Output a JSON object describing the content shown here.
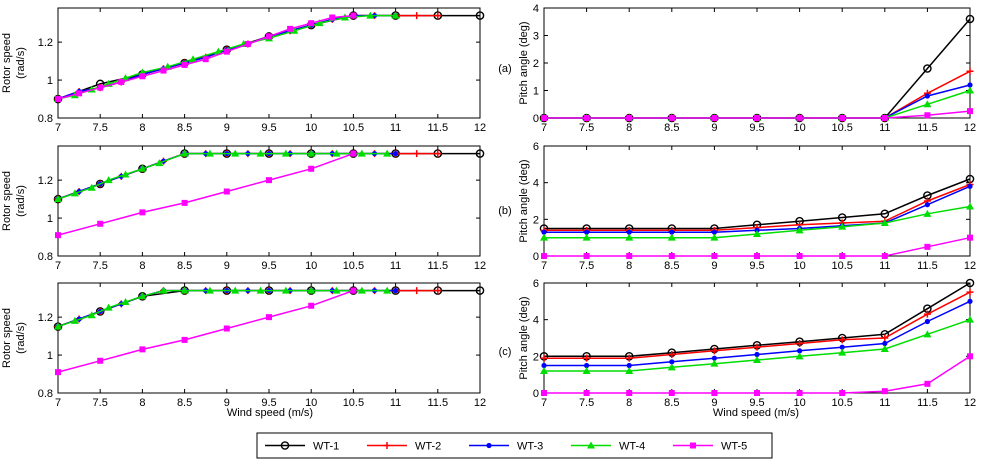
{
  "x_ticks": [
    7,
    7.5,
    8,
    8.5,
    9,
    9.5,
    10,
    10.5,
    11,
    11.5,
    12
  ],
  "xlabel": "Wind speed (m/s)",
  "panel_labels": [
    "(a)",
    "(b)",
    "(c)"
  ],
  "legend": {
    "entries": [
      {
        "name": "WT-1",
        "color": "#000000",
        "marker": "circle"
      },
      {
        "name": "WT-2",
        "color": "#ff0000",
        "marker": "plus"
      },
      {
        "name": "WT-3",
        "color": "#0000ff",
        "marker": "dot"
      },
      {
        "name": "WT-4",
        "color": "#00dd00",
        "marker": "triangle"
      },
      {
        "name": "WT-5",
        "color": "#ff00ff",
        "marker": "square"
      }
    ]
  },
  "chart_data": [
    {
      "type": "line",
      "title": "",
      "panel": "(a)",
      "ylabel_lines": [
        "Rotor speed",
        "(rad/s)"
      ],
      "xlabel": "",
      "xlim": [
        7,
        12
      ],
      "ylim": [
        0.8,
        1.38
      ],
      "yticks": [
        0.8,
        1,
        1.2
      ],
      "ytick_labels": [
        "0.8",
        "1",
        "1.2"
      ],
      "xtick_labels_shown": true,
      "series": [
        {
          "name": "WT-1",
          "x": [
            7,
            7.5,
            8,
            8.5,
            9,
            9.5,
            10,
            10.5,
            11,
            11.5,
            12
          ],
          "y": [
            0.9,
            0.98,
            1.03,
            1.09,
            1.16,
            1.23,
            1.29,
            1.34,
            1.34,
            1.34,
            1.34
          ]
        },
        {
          "name": "WT-2",
          "x": [
            7,
            7.25,
            7.5,
            7.75,
            8,
            8.25,
            8.5,
            8.75,
            9,
            9.25,
            9.5,
            9.75,
            10,
            10.25,
            10.5,
            10.75,
            11,
            11.25,
            11.5
          ],
          "y": [
            0.9,
            0.94,
            0.96,
            0.99,
            1.03,
            1.06,
            1.09,
            1.12,
            1.16,
            1.19,
            1.23,
            1.26,
            1.29,
            1.32,
            1.34,
            1.34,
            1.34,
            1.34,
            1.34
          ]
        },
        {
          "name": "WT-3",
          "x": [
            7,
            7.25,
            7.5,
            7.75,
            8,
            8.25,
            8.5,
            8.75,
            9,
            9.25,
            9.5,
            9.75,
            10,
            10.25,
            10.5,
            10.75,
            11
          ],
          "y": [
            0.9,
            0.94,
            0.96,
            0.99,
            1.03,
            1.06,
            1.09,
            1.12,
            1.16,
            1.19,
            1.23,
            1.26,
            1.29,
            1.32,
            1.34,
            1.34,
            1.34
          ]
        },
        {
          "name": "WT-4",
          "x": [
            7,
            7.2,
            7.4,
            7.6,
            7.8,
            8,
            8.3,
            8.6,
            8.9,
            9.2,
            9.5,
            9.8,
            10.1,
            10.4,
            10.7,
            11
          ],
          "y": [
            0.9,
            0.92,
            0.95,
            0.98,
            1.01,
            1.04,
            1.07,
            1.11,
            1.15,
            1.19,
            1.22,
            1.26,
            1.3,
            1.33,
            1.34,
            1.34
          ]
        },
        {
          "name": "WT-5",
          "x": [
            7,
            7.25,
            7.5,
            7.75,
            8,
            8.25,
            8.5,
            8.75,
            9,
            9.25,
            9.5,
            9.75,
            10,
            10.25,
            10.5
          ],
          "y": [
            0.9,
            0.93,
            0.96,
            0.99,
            1.02,
            1.05,
            1.08,
            1.11,
            1.15,
            1.19,
            1.23,
            1.27,
            1.3,
            1.33,
            1.34
          ]
        }
      ]
    },
    {
      "type": "line",
      "title": "",
      "panel": "(a)",
      "ylabel_lines": [
        "Pitch angle (deg)"
      ],
      "xlabel": "",
      "xlim": [
        7,
        12
      ],
      "ylim": [
        0,
        4
      ],
      "yticks": [
        0,
        1,
        2,
        3,
        4
      ],
      "ytick_labels": [
        "0",
        "1",
        "2",
        "3",
        "4"
      ],
      "xtick_labels_shown": true,
      "series": [
        {
          "name": "WT-1",
          "x": [
            7,
            7.5,
            8,
            8.5,
            9,
            9.5,
            10,
            10.5,
            11,
            11.5,
            12
          ],
          "y": [
            0,
            0,
            0,
            0,
            0,
            0,
            0,
            0,
            0,
            1.8,
            3.6
          ]
        },
        {
          "name": "WT-2",
          "x": [
            7,
            7.5,
            8,
            8.5,
            9,
            9.5,
            10,
            10.5,
            11,
            11.5,
            12
          ],
          "y": [
            0,
            0,
            0,
            0,
            0,
            0,
            0,
            0,
            0,
            0.9,
            1.7
          ]
        },
        {
          "name": "WT-3",
          "x": [
            7,
            7.5,
            8,
            8.5,
            9,
            9.5,
            10,
            10.5,
            11,
            11.5,
            12
          ],
          "y": [
            0,
            0,
            0,
            0,
            0,
            0,
            0,
            0,
            0,
            0.8,
            1.2
          ]
        },
        {
          "name": "WT-4",
          "x": [
            7,
            7.5,
            8,
            8.5,
            9,
            9.5,
            10,
            10.5,
            11,
            11.5,
            12
          ],
          "y": [
            0,
            0,
            0,
            0,
            0,
            0,
            0,
            0,
            0,
            0.5,
            1.0
          ]
        },
        {
          "name": "WT-5",
          "x": [
            7,
            7.5,
            8,
            8.5,
            9,
            9.5,
            10,
            10.5,
            11,
            11.5,
            12
          ],
          "y": [
            0,
            0,
            0,
            0,
            0,
            0,
            0,
            0,
            0,
            0.1,
            0.25
          ]
        }
      ]
    },
    {
      "type": "line",
      "title": "",
      "panel": "(b)",
      "ylabel_lines": [
        "Rotor speed",
        "(rad/s)"
      ],
      "xlabel": "",
      "xlim": [
        7,
        12
      ],
      "ylim": [
        0.8,
        1.38
      ],
      "yticks": [
        0.8,
        1,
        1.2
      ],
      "ytick_labels": [
        "0.8",
        "1",
        "1.2"
      ],
      "xtick_labels_shown": true,
      "series": [
        {
          "name": "WT-1",
          "x": [
            7,
            7.5,
            8,
            8.5,
            9,
            9.5,
            10,
            10.5,
            11,
            11.5,
            12
          ],
          "y": [
            1.1,
            1.18,
            1.26,
            1.34,
            1.34,
            1.34,
            1.34,
            1.34,
            1.34,
            1.34,
            1.34
          ]
        },
        {
          "name": "WT-2",
          "x": [
            7,
            7.25,
            7.5,
            7.75,
            8,
            8.25,
            8.5,
            8.75,
            9,
            9.25,
            9.5,
            9.75,
            10,
            10.25,
            10.5,
            10.75,
            11,
            11.25,
            11.5
          ],
          "y": [
            1.1,
            1.14,
            1.18,
            1.22,
            1.26,
            1.3,
            1.34,
            1.34,
            1.34,
            1.34,
            1.34,
            1.34,
            1.34,
            1.34,
            1.34,
            1.34,
            1.34,
            1.34,
            1.34
          ]
        },
        {
          "name": "WT-3",
          "x": [
            7,
            7.25,
            7.5,
            7.75,
            8,
            8.25,
            8.5,
            8.75,
            9,
            9.25,
            9.5,
            9.75,
            10,
            10.25,
            10.5,
            10.75,
            11
          ],
          "y": [
            1.1,
            1.14,
            1.18,
            1.22,
            1.26,
            1.3,
            1.34,
            1.34,
            1.34,
            1.34,
            1.34,
            1.34,
            1.34,
            1.34,
            1.34,
            1.34,
            1.34
          ]
        },
        {
          "name": "WT-4",
          "x": [
            7,
            7.2,
            7.4,
            7.6,
            7.8,
            8,
            8.2,
            8.5,
            8.8,
            9.1,
            9.4,
            9.7,
            10,
            10.3,
            10.6,
            10.9
          ],
          "y": [
            1.1,
            1.13,
            1.16,
            1.2,
            1.23,
            1.26,
            1.29,
            1.34,
            1.34,
            1.34,
            1.34,
            1.34,
            1.34,
            1.34,
            1.34,
            1.34
          ]
        },
        {
          "name": "WT-5",
          "x": [
            7,
            7.5,
            8,
            8.5,
            9,
            9.5,
            10,
            10.5
          ],
          "y": [
            0.91,
            0.97,
            1.03,
            1.08,
            1.14,
            1.2,
            1.26,
            1.34
          ]
        }
      ]
    },
    {
      "type": "line",
      "title": "",
      "panel": "(b)",
      "ylabel_lines": [
        "Pitch angle (deg)"
      ],
      "xlabel": "",
      "xlim": [
        7,
        12
      ],
      "ylim": [
        0,
        6
      ],
      "yticks": [
        0,
        2,
        4,
        6
      ],
      "ytick_labels": [
        "0",
        "2",
        "4",
        "6"
      ],
      "xtick_labels_shown": true,
      "series": [
        {
          "name": "WT-1",
          "x": [
            7,
            7.5,
            8,
            8.5,
            9,
            9.5,
            10,
            10.5,
            11,
            11.5,
            12
          ],
          "y": [
            1.5,
            1.5,
            1.5,
            1.5,
            1.5,
            1.7,
            1.9,
            2.1,
            2.3,
            3.3,
            4.2
          ]
        },
        {
          "name": "WT-2",
          "x": [
            7,
            7.5,
            8,
            8.5,
            9,
            9.5,
            10,
            10.5,
            11,
            11.5,
            12
          ],
          "y": [
            1.4,
            1.4,
            1.4,
            1.4,
            1.4,
            1.55,
            1.7,
            1.8,
            1.9,
            3.0,
            3.9
          ]
        },
        {
          "name": "WT-3",
          "x": [
            7,
            7.5,
            8,
            8.5,
            9,
            9.5,
            10,
            10.5,
            11,
            11.5,
            12
          ],
          "y": [
            1.3,
            1.3,
            1.3,
            1.3,
            1.3,
            1.4,
            1.5,
            1.65,
            1.8,
            2.8,
            3.8
          ]
        },
        {
          "name": "WT-4",
          "x": [
            7,
            7.5,
            8,
            8.5,
            9,
            9.5,
            10,
            10.5,
            11,
            11.5,
            12
          ],
          "y": [
            1.0,
            1.0,
            1.0,
            1.0,
            1.0,
            1.2,
            1.4,
            1.6,
            1.8,
            2.3,
            2.7
          ]
        },
        {
          "name": "WT-5",
          "x": [
            7,
            7.5,
            8,
            8.5,
            9,
            9.5,
            10,
            10.5,
            11,
            11.5,
            12
          ],
          "y": [
            0,
            0,
            0,
            0,
            0,
            0,
            0,
            0,
            0,
            0.5,
            1.0
          ]
        }
      ]
    },
    {
      "type": "line",
      "title": "",
      "panel": "(c)",
      "ylabel_lines": [
        "Rotor speed",
        "(rad/s)"
      ],
      "xlabel": "Wind speed (m/s)",
      "xlim": [
        7,
        12
      ],
      "ylim": [
        0.8,
        1.38
      ],
      "yticks": [
        0.8,
        1,
        1.2
      ],
      "ytick_labels": [
        "0.8",
        "1",
        "1.2"
      ],
      "xtick_labels_shown": true,
      "series": [
        {
          "name": "WT-1",
          "x": [
            7,
            7.5,
            8,
            8.5,
            9,
            9.5,
            10,
            10.5,
            11,
            11.5,
            12
          ],
          "y": [
            1.15,
            1.23,
            1.31,
            1.34,
            1.34,
            1.34,
            1.34,
            1.34,
            1.34,
            1.34,
            1.34
          ]
        },
        {
          "name": "WT-2",
          "x": [
            7,
            7.25,
            7.5,
            7.75,
            8,
            8.25,
            8.5,
            8.75,
            9,
            9.25,
            9.5,
            9.75,
            10,
            10.25,
            10.5,
            10.75,
            11,
            11.25,
            11.5
          ],
          "y": [
            1.15,
            1.19,
            1.23,
            1.27,
            1.31,
            1.34,
            1.34,
            1.34,
            1.34,
            1.34,
            1.34,
            1.34,
            1.34,
            1.34,
            1.34,
            1.34,
            1.34,
            1.34,
            1.34
          ]
        },
        {
          "name": "WT-3",
          "x": [
            7,
            7.25,
            7.5,
            7.75,
            8,
            8.25,
            8.5,
            8.75,
            9,
            9.25,
            9.5,
            9.75,
            10,
            10.25,
            10.5,
            10.75,
            11
          ],
          "y": [
            1.15,
            1.19,
            1.23,
            1.27,
            1.31,
            1.34,
            1.34,
            1.34,
            1.34,
            1.34,
            1.34,
            1.34,
            1.34,
            1.34,
            1.34,
            1.34,
            1.34
          ]
        },
        {
          "name": "WT-4",
          "x": [
            7,
            7.2,
            7.4,
            7.6,
            7.8,
            8,
            8.25,
            8.5,
            8.8,
            9.1,
            9.4,
            9.7,
            10,
            10.3,
            10.6,
            10.9
          ],
          "y": [
            1.15,
            1.18,
            1.21,
            1.25,
            1.28,
            1.31,
            1.34,
            1.34,
            1.34,
            1.34,
            1.34,
            1.34,
            1.34,
            1.34,
            1.34,
            1.34
          ]
        },
        {
          "name": "WT-5",
          "x": [
            7,
            7.5,
            8,
            8.5,
            9,
            9.5,
            10,
            10.5
          ],
          "y": [
            0.91,
            0.97,
            1.03,
            1.08,
            1.14,
            1.2,
            1.26,
            1.34
          ]
        }
      ]
    },
    {
      "type": "line",
      "title": "",
      "panel": "(c)",
      "ylabel_lines": [
        "Pitch angle (deg)"
      ],
      "xlabel": "Wind speed (m/s)",
      "xlim": [
        7,
        12
      ],
      "ylim": [
        0,
        6
      ],
      "yticks": [
        0,
        2,
        4,
        6
      ],
      "ytick_labels": [
        "0",
        "2",
        "4",
        "6"
      ],
      "xtick_labels_shown": true,
      "series": [
        {
          "name": "WT-1",
          "x": [
            7,
            7.5,
            8,
            8.5,
            9,
            9.5,
            10,
            10.5,
            11,
            11.5,
            12
          ],
          "y": [
            2.0,
            2.0,
            2.0,
            2.2,
            2.4,
            2.6,
            2.8,
            3.0,
            3.2,
            4.6,
            6.0
          ]
        },
        {
          "name": "WT-2",
          "x": [
            7,
            7.5,
            8,
            8.5,
            9,
            9.5,
            10,
            10.5,
            11,
            11.5,
            12
          ],
          "y": [
            1.9,
            1.9,
            1.9,
            2.1,
            2.3,
            2.5,
            2.7,
            2.9,
            3.0,
            4.3,
            5.5
          ]
        },
        {
          "name": "WT-3",
          "x": [
            7,
            7.5,
            8,
            8.5,
            9,
            9.5,
            10,
            10.5,
            11,
            11.5,
            12
          ],
          "y": [
            1.5,
            1.5,
            1.5,
            1.7,
            1.9,
            2.1,
            2.3,
            2.5,
            2.7,
            3.9,
            5.0
          ]
        },
        {
          "name": "WT-4",
          "x": [
            7,
            7.5,
            8,
            8.5,
            9,
            9.5,
            10,
            10.5,
            11,
            11.5,
            12
          ],
          "y": [
            1.2,
            1.2,
            1.2,
            1.4,
            1.6,
            1.8,
            2.0,
            2.2,
            2.4,
            3.2,
            4.0
          ]
        },
        {
          "name": "WT-5",
          "x": [
            7,
            7.5,
            8,
            8.5,
            9,
            9.5,
            10,
            10.5,
            11,
            11.5,
            12
          ],
          "y": [
            0,
            0,
            0,
            0,
            0,
            0,
            0,
            0,
            0.1,
            0.5,
            2.0
          ]
        }
      ]
    }
  ]
}
